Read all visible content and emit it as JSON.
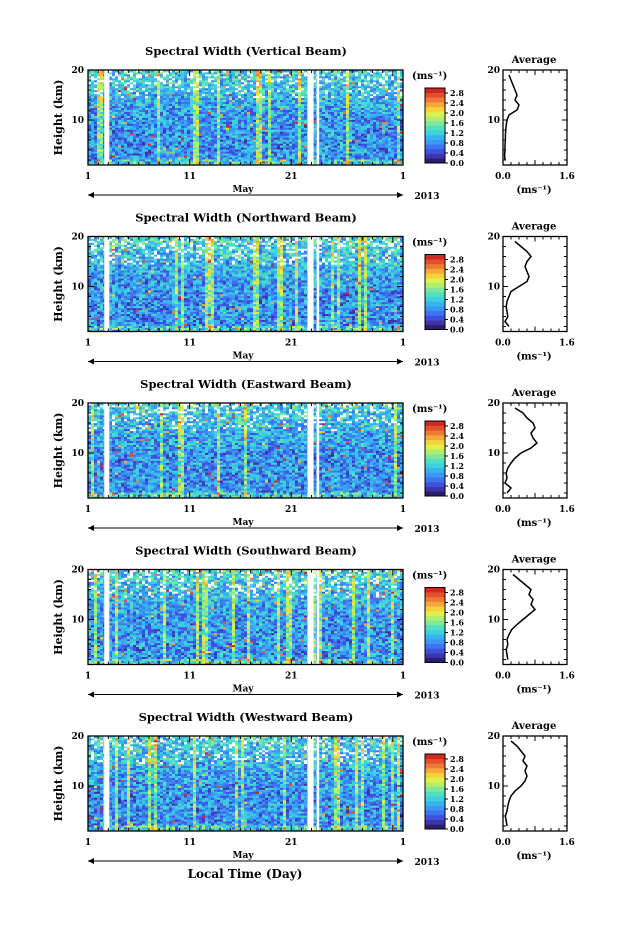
{
  "figure": {
    "xlabel": "Local Time (Day)",
    "cbar_unit": "(ms⁻¹)",
    "avg_title": "Average",
    "avg_xlabel": "(ms⁻¹)",
    "month_label": "May",
    "year_label": "2013"
  },
  "colorscale": [
    "#2a1f6e",
    "#3c34a8",
    "#3f4fe0",
    "#3d74f0",
    "#3d95f4",
    "#34b5ef",
    "#3fd0e0",
    "#4fe0c4",
    "#7fe89a",
    "#b0ef6c",
    "#dff04c",
    "#f6d23a",
    "#f6a83a",
    "#ef7a34",
    "#e4502c",
    "#cf2a22"
  ],
  "chart_data": [
    {
      "type": "heatmap",
      "title": "Spectral Width (Vertical Beam)",
      "ylabel": "Height (km)",
      "xticks": [
        "1",
        "11",
        "21",
        "1"
      ],
      "xlim_day": [
        1,
        32
      ],
      "yticks": [
        "10",
        "20"
      ],
      "ylim_km": [
        1,
        20
      ],
      "colorbar_ticks": [
        "0.0",
        "0.4",
        "0.8",
        "1.2",
        "1.6",
        "2.0",
        "2.4",
        "2.8"
      ],
      "colorbar_range": [
        0,
        3.0
      ],
      "avg_xticks": [
        "0.0",
        "1.6"
      ],
      "avg_xlim": [
        0,
        1.6
      ],
      "avg_height_km": [
        2,
        3,
        4,
        5,
        6,
        7,
        8,
        9,
        10,
        11,
        12,
        13,
        14,
        15,
        16,
        17,
        18,
        19
      ],
      "avg_width": [
        0.05,
        0.04,
        0.05,
        0.05,
        0.06,
        0.06,
        0.07,
        0.08,
        0.1,
        0.15,
        0.35,
        0.4,
        0.3,
        0.35,
        0.3,
        0.25,
        0.2,
        0.15
      ]
    },
    {
      "type": "heatmap",
      "title": "Spectral Width (Northward Beam)",
      "ylabel": "Height (km)",
      "xticks": [
        "1",
        "11",
        "21",
        "1"
      ],
      "xlim_day": [
        1,
        32
      ],
      "yticks": [
        "10",
        "20"
      ],
      "ylim_km": [
        1,
        20
      ],
      "colorbar_ticks": [
        "0.0",
        "0.4",
        "0.8",
        "1.2",
        "1.6",
        "2.0",
        "2.4",
        "2.8"
      ],
      "colorbar_range": [
        0,
        3.0
      ],
      "avg_xticks": [
        "0.0",
        "1.6"
      ],
      "avg_xlim": [
        0,
        1.6
      ],
      "avg_height_km": [
        2,
        3,
        4,
        5,
        6,
        7,
        8,
        9,
        10,
        11,
        12,
        13,
        14,
        15,
        16,
        17,
        18,
        19
      ],
      "avg_width": [
        0.15,
        0.05,
        0.12,
        0.1,
        0.08,
        0.1,
        0.15,
        0.2,
        0.4,
        0.6,
        0.65,
        0.6,
        0.55,
        0.6,
        0.7,
        0.6,
        0.45,
        0.3
      ]
    },
    {
      "type": "heatmap",
      "title": "Spectral Width (Eastward Beam)",
      "ylabel": "Height (km)",
      "xticks": [
        "1",
        "11",
        "21",
        "1"
      ],
      "xlim_day": [
        1,
        32
      ],
      "yticks": [
        "10",
        "20"
      ],
      "ylim_km": [
        1,
        20
      ],
      "colorbar_ticks": [
        "0.0",
        "0.4",
        "0.8",
        "1.2",
        "1.6",
        "2.0",
        "2.4",
        "2.8"
      ],
      "colorbar_range": [
        0,
        3.0
      ],
      "avg_xticks": [
        "0.0",
        "1.6"
      ],
      "avg_xlim": [
        0,
        1.6
      ],
      "avg_height_km": [
        2,
        3,
        4,
        5,
        6,
        7,
        8,
        9,
        10,
        11,
        12,
        13,
        14,
        15,
        16,
        17,
        18,
        19
      ],
      "avg_width": [
        0.1,
        0.2,
        0.05,
        0.1,
        0.08,
        0.12,
        0.2,
        0.3,
        0.45,
        0.7,
        0.85,
        0.75,
        0.7,
        0.8,
        0.75,
        0.6,
        0.5,
        0.3
      ]
    },
    {
      "type": "heatmap",
      "title": "Spectral Width (Southward Beam)",
      "ylabel": "Height (km)",
      "xticks": [
        "1",
        "11",
        "21",
        "1"
      ],
      "xlim_day": [
        1,
        32
      ],
      "yticks": [
        "10",
        "20"
      ],
      "ylim_km": [
        1,
        20
      ],
      "colorbar_ticks": [
        "0.0",
        "0.4",
        "0.8",
        "1.2",
        "1.6",
        "2.0",
        "2.4",
        "2.8"
      ],
      "colorbar_range": [
        0,
        3.0
      ],
      "avg_xticks": [
        "0.0",
        "1.6"
      ],
      "avg_xlim": [
        0,
        1.6
      ],
      "avg_height_km": [
        2,
        3,
        4,
        5,
        6,
        7,
        8,
        9,
        10,
        11,
        12,
        13,
        14,
        15,
        16,
        17,
        18,
        19
      ],
      "avg_width": [
        0.12,
        0.1,
        0.08,
        0.12,
        0.1,
        0.15,
        0.22,
        0.35,
        0.5,
        0.65,
        0.8,
        0.7,
        0.75,
        0.65,
        0.7,
        0.55,
        0.4,
        0.25
      ]
    },
    {
      "type": "heatmap",
      "title": "Spectral Width (Westward Beam)",
      "ylabel": "Height (km)",
      "xticks": [
        "1",
        "11",
        "21",
        "1"
      ],
      "xlim_day": [
        1,
        32
      ],
      "yticks": [
        "10",
        "20"
      ],
      "ylim_km": [
        1,
        20
      ],
      "colorbar_ticks": [
        "0.0",
        "0.4",
        "0.8",
        "1.2",
        "1.6",
        "2.0",
        "2.4",
        "2.8"
      ],
      "colorbar_range": [
        0,
        3.0
      ],
      "avg_xticks": [
        "0.0",
        "1.6"
      ],
      "avg_xlim": [
        0,
        1.6
      ],
      "avg_height_km": [
        2,
        3,
        4,
        5,
        6,
        7,
        8,
        9,
        10,
        11,
        12,
        13,
        14,
        15,
        16,
        17,
        18,
        19
      ],
      "avg_width": [
        0.1,
        0.08,
        0.06,
        0.1,
        0.12,
        0.15,
        0.2,
        0.3,
        0.45,
        0.55,
        0.6,
        0.55,
        0.6,
        0.5,
        0.55,
        0.45,
        0.35,
        0.2
      ]
    }
  ]
}
